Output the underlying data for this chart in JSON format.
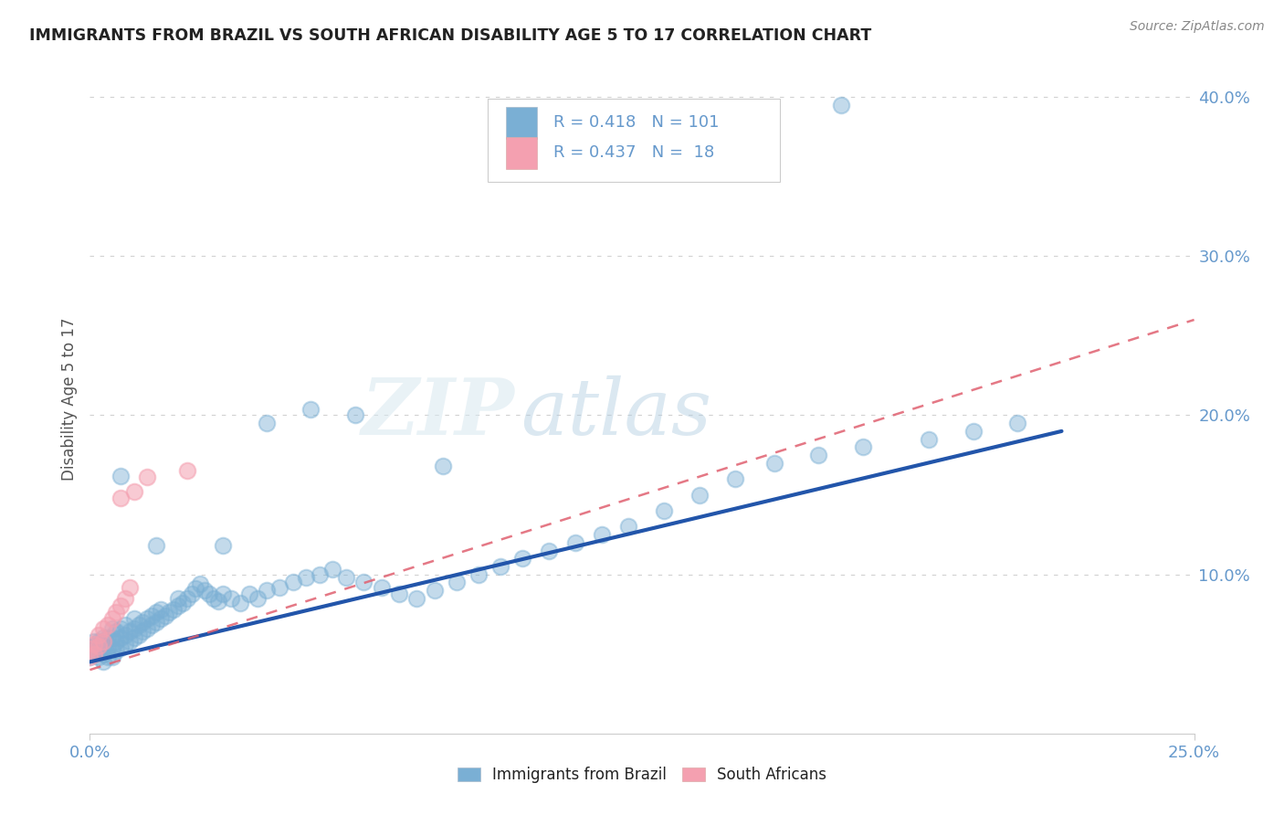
{
  "title": "IMMIGRANTS FROM BRAZIL VS SOUTH AFRICAN DISABILITY AGE 5 TO 17 CORRELATION CHART",
  "source_text": "Source: ZipAtlas.com",
  "ylabel": "Disability Age 5 to 17",
  "xlim": [
    0.0,
    0.25
  ],
  "ylim": [
    0.0,
    0.42
  ],
  "ytick_labels": [
    "10.0%",
    "20.0%",
    "30.0%",
    "40.0%"
  ],
  "ytick_values": [
    0.1,
    0.2,
    0.3,
    0.4
  ],
  "grid_color": "#cccccc",
  "background_color": "#ffffff",
  "watermark_zip": "ZIP",
  "watermark_atlas": "atlas",
  "legend1_label": "Immigrants from Brazil",
  "legend2_label": "South Africans",
  "r1": 0.418,
  "n1": 101,
  "r2": 0.437,
  "n2": 18,
  "blue_color": "#7aafd4",
  "pink_color": "#f4a0b0",
  "blue_line_color": "#2255aa",
  "pink_line_color": "#e06070",
  "title_color": "#222222",
  "axis_label_color": "#6699cc",
  "brazil_x": [
    0.0,
    0.0,
    0.001,
    0.001,
    0.001,
    0.002,
    0.002,
    0.002,
    0.003,
    0.003,
    0.003,
    0.003,
    0.004,
    0.004,
    0.004,
    0.005,
    0.005,
    0.005,
    0.005,
    0.006,
    0.006,
    0.006,
    0.007,
    0.007,
    0.007,
    0.008,
    0.008,
    0.008,
    0.009,
    0.009,
    0.01,
    0.01,
    0.01,
    0.011,
    0.011,
    0.012,
    0.012,
    0.013,
    0.013,
    0.014,
    0.014,
    0.015,
    0.015,
    0.016,
    0.016,
    0.017,
    0.018,
    0.019,
    0.02,
    0.02,
    0.021,
    0.022,
    0.023,
    0.024,
    0.025,
    0.026,
    0.027,
    0.028,
    0.029,
    0.03,
    0.032,
    0.034,
    0.036,
    0.038,
    0.04,
    0.043,
    0.046,
    0.049,
    0.052,
    0.055,
    0.058,
    0.062,
    0.066,
    0.07,
    0.074,
    0.078,
    0.083,
    0.088,
    0.093,
    0.098,
    0.104,
    0.11,
    0.116,
    0.122,
    0.13,
    0.138,
    0.146,
    0.155,
    0.165,
    0.175,
    0.19,
    0.2,
    0.21,
    0.015,
    0.007,
    0.03,
    0.04,
    0.05,
    0.06,
    0.08,
    0.17
  ],
  "brazil_y": [
    0.048,
    0.052,
    0.05,
    0.055,
    0.058,
    0.048,
    0.053,
    0.058,
    0.045,
    0.05,
    0.055,
    0.06,
    0.048,
    0.054,
    0.06,
    0.048,
    0.054,
    0.06,
    0.066,
    0.052,
    0.058,
    0.064,
    0.054,
    0.06,
    0.066,
    0.056,
    0.062,
    0.068,
    0.058,
    0.064,
    0.06,
    0.066,
    0.072,
    0.062,
    0.068,
    0.064,
    0.07,
    0.066,
    0.072,
    0.068,
    0.074,
    0.07,
    0.076,
    0.072,
    0.078,
    0.074,
    0.076,
    0.078,
    0.08,
    0.085,
    0.082,
    0.085,
    0.088,
    0.091,
    0.094,
    0.09,
    0.088,
    0.085,
    0.083,
    0.088,
    0.085,
    0.082,
    0.088,
    0.085,
    0.09,
    0.092,
    0.095,
    0.098,
    0.1,
    0.103,
    0.098,
    0.095,
    0.092,
    0.088,
    0.085,
    0.09,
    0.095,
    0.1,
    0.105,
    0.11,
    0.115,
    0.12,
    0.125,
    0.13,
    0.14,
    0.15,
    0.16,
    0.17,
    0.175,
    0.18,
    0.185,
    0.19,
    0.195,
    0.118,
    0.162,
    0.118,
    0.195,
    0.204,
    0.2,
    0.168,
    0.395
  ],
  "sa_x": [
    0.0,
    0.0,
    0.001,
    0.001,
    0.002,
    0.002,
    0.003,
    0.003,
    0.004,
    0.005,
    0.006,
    0.007,
    0.007,
    0.008,
    0.009,
    0.01,
    0.013,
    0.022
  ],
  "sa_y": [
    0.048,
    0.053,
    0.05,
    0.056,
    0.055,
    0.062,
    0.058,
    0.066,
    0.068,
    0.072,
    0.076,
    0.08,
    0.148,
    0.085,
    0.092,
    0.152,
    0.161,
    0.165
  ]
}
